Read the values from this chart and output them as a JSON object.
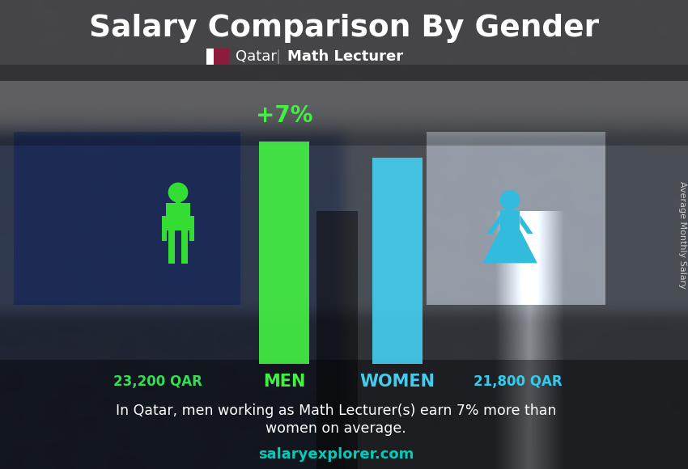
{
  "title": "Salary Comparison By Gender",
  "subtitle_country": "Qatar",
  "subtitle_job": "Math Lecturer",
  "men_salary_label": "23,200 QAR",
  "women_salary_label": "21,800 QAR",
  "percent_diff": "+7%",
  "men_bar_color": "#44ee44",
  "women_bar_color": "#44ccee",
  "men_icon_color": "#33dd33",
  "women_icon_color": "#33bbdd",
  "text_color_white": "#ffffff",
  "text_color_green": "#33dd55",
  "text_color_cyan": "#33ccee",
  "text_color_teal": "#00ccbb",
  "men_label": "MEN",
  "women_label": "WOMEN",
  "bottom_text_line1": "In Qatar, men working as Math Lecturer(s) earn 7% more than",
  "bottom_text_line2": "women on average.",
  "website": "salaryexplorer.com",
  "ylabel": "Average Monthly Salary",
  "fig_w": 8.5,
  "fig_h": 5.8,
  "dpi": 100
}
